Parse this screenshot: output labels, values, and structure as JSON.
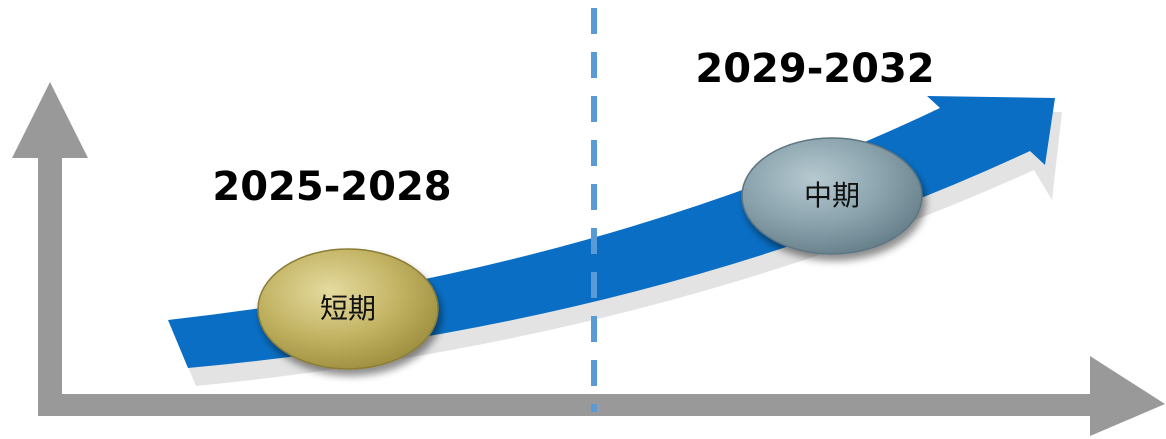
{
  "phases": [
    {
      "label": "短期",
      "period": "2025-2028",
      "color": "#bfb15e"
    },
    {
      "label": "中期",
      "period": "2029-2032",
      "color": "#8aa3ad"
    }
  ],
  "colors": {
    "axes": "#999999",
    "trend_arrow": "#0a6fc4",
    "divider": "#5b9bd5"
  }
}
